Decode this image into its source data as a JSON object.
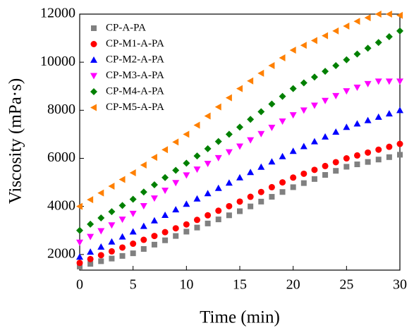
{
  "chart_data": {
    "type": "scatter",
    "x_label": "Time (min)",
    "y_label": "Viscosity (mPa·s)",
    "x": [
      0,
      1,
      2,
      3,
      4,
      5,
      6,
      7,
      8,
      9,
      10,
      11,
      12,
      13,
      14,
      15,
      16,
      17,
      18,
      19,
      20,
      21,
      22,
      23,
      24,
      25,
      26,
      27,
      28,
      29,
      30
    ],
    "xlim": [
      0,
      30
    ],
    "xticks": [
      0,
      5,
      10,
      15,
      20,
      25,
      30
    ],
    "ylim": [
      1350,
      12000
    ],
    "yticks": [
      2000,
      4000,
      6000,
      8000,
      10000,
      12000
    ],
    "legend": "upper left",
    "series": [
      {
        "name": "CP-A-PA",
        "color": "#808080",
        "marker": "square",
        "values": [
          1500,
          1610,
          1720,
          1830,
          1940,
          2050,
          2230,
          2410,
          2590,
          2770,
          2950,
          3120,
          3290,
          3460,
          3630,
          3800,
          4000,
          4200,
          4400,
          4600,
          4800,
          4970,
          5140,
          5310,
          5480,
          5650,
          5750,
          5850,
          5950,
          6050,
          6150
        ]
      },
      {
        "name": "CP-M1-A-PA",
        "color": "#ff0000",
        "marker": "circle",
        "values": [
          1650,
          1810,
          1970,
          2130,
          2290,
          2450,
          2610,
          2770,
          2930,
          3090,
          3250,
          3440,
          3630,
          3820,
          4010,
          4200,
          4400,
          4600,
          4800,
          5000,
          5200,
          5360,
          5520,
          5680,
          5840,
          6000,
          6120,
          6240,
          6360,
          6480,
          6600
        ]
      },
      {
        "name": "CP-M2-A-PA",
        "color": "#0000ff",
        "marker": "triangle-up",
        "values": [
          1900,
          2110,
          2320,
          2530,
          2740,
          2950,
          3180,
          3410,
          3640,
          3870,
          4100,
          4320,
          4540,
          4760,
          4980,
          5200,
          5420,
          5640,
          5860,
          6080,
          6300,
          6500,
          6700,
          6900,
          7100,
          7300,
          7440,
          7580,
          7720,
          7860,
          8000
        ]
      },
      {
        "name": "CP-M3-A-PA",
        "color": "#ff00ff",
        "marker": "triangle-down",
        "values": [
          2500,
          2740,
          2980,
          3220,
          3460,
          3700,
          4020,
          4340,
          4660,
          4980,
          5300,
          5540,
          5780,
          6020,
          6260,
          6500,
          6760,
          7020,
          7280,
          7540,
          7800,
          8000,
          8200,
          8400,
          8600,
          8800,
          8950,
          9100,
          9200,
          9200,
          9200
        ]
      },
      {
        "name": "CP-M4-A-PA",
        "color": "#008000",
        "marker": "diamond",
        "values": [
          3000,
          3260,
          3520,
          3780,
          4040,
          4300,
          4600,
          4900,
          5200,
          5500,
          5800,
          6100,
          6400,
          6700,
          7000,
          7300,
          7620,
          7940,
          8260,
          8580,
          8900,
          9140,
          9380,
          9620,
          9860,
          10100,
          10340,
          10580,
          10820,
          11060,
          11300
        ]
      },
      {
        "name": "CP-M5-A-PA",
        "color": "#ff8000",
        "marker": "triangle-left",
        "values": [
          4000,
          4280,
          4560,
          4840,
          5120,
          5400,
          5720,
          6040,
          6360,
          6680,
          7000,
          7380,
          7760,
          8140,
          8520,
          8900,
          9220,
          9540,
          9860,
          10180,
          10500,
          10700,
          10900,
          11100,
          11300,
          11500,
          11700,
          11850,
          12000,
          12000,
          11950
        ]
      }
    ]
  }
}
